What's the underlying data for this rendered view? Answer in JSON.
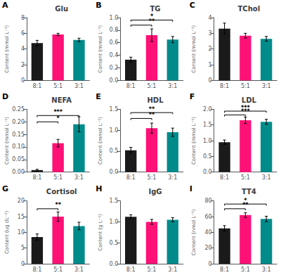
{
  "chart_data": [
    {
      "type": "bar",
      "label": "A",
      "title": "Glu",
      "ylabel": "Content (mmol L⁻¹)",
      "categories": [
        "8:1",
        "5:1",
        "3:1"
      ],
      "values": [
        4.75,
        5.85,
        5.15
      ],
      "errors": [
        0.35,
        0.15,
        0.22
      ],
      "colors": [
        "#1a1a1a",
        "#FF1177",
        "#008B8B"
      ],
      "ylim": [
        0,
        8
      ],
      "yticks": [
        0,
        2,
        4,
        6,
        8
      ],
      "annotations": [],
      "grid": false
    },
    {
      "type": "bar",
      "label": "B",
      "title": "TG",
      "ylabel": "Content (mmol L⁻¹)",
      "categories": [
        "8:1",
        "5:1",
        "3:1"
      ],
      "values": [
        0.33,
        0.72,
        0.65
      ],
      "errors": [
        0.04,
        0.1,
        0.05
      ],
      "colors": [
        "#1a1a1a",
        "#FF1177",
        "#008B8B"
      ],
      "ylim": [
        0,
        1.0
      ],
      "yticks": [
        {
          "value": 0.0,
          "label": "0.0"
        },
        {
          "value": 0.2,
          "label": "0.2"
        },
        {
          "value": 0.4,
          "label": "0.4"
        },
        {
          "value": 0.6,
          "label": "0.6"
        },
        {
          "value": 0.8,
          "label": "0.8"
        },
        {
          "value": 1.0,
          "label": "1.0"
        }
      ],
      "annotations": [
        {
          "from": "8:1",
          "to": "5:1",
          "y": 0.88,
          "text": "**"
        },
        {
          "from": "8:1",
          "to": "3:1",
          "y": 0.96,
          "text": "*"
        }
      ],
      "grid": false
    },
    {
      "type": "bar",
      "label": "C",
      "title": "TChol",
      "ylabel": "Content (mmol L⁻¹)",
      "categories": [
        "8:1",
        "5:1",
        "3:1"
      ],
      "values": [
        3.3,
        2.85,
        2.65
      ],
      "errors": [
        0.35,
        0.15,
        0.15
      ],
      "colors": [
        "#1a1a1a",
        "#FF1177",
        "#008B8B"
      ],
      "ylim": [
        0,
        4
      ],
      "yticks": [
        0,
        1,
        2,
        3,
        4
      ],
      "annotations": [],
      "grid": false
    },
    {
      "type": "bar",
      "label": "D",
      "title": "NEFA",
      "ylabel": "Content (mmol L⁻¹)",
      "categories": [
        "8:1",
        "5:1",
        "3:1"
      ],
      "values": [
        0.008,
        0.115,
        0.19
      ],
      "errors": [
        0.003,
        0.015,
        0.03
      ],
      "colors": [
        "#1a1a1a",
        "#FF1177",
        "#008B8B"
      ],
      "ylim": [
        0,
        0.25
      ],
      "yticks": [
        {
          "value": 0.0,
          "label": "0.00"
        },
        {
          "value": 0.05,
          "label": "0.05"
        },
        {
          "value": 0.1,
          "label": "0.10"
        },
        {
          "value": 0.15,
          "label": "0.15"
        },
        {
          "value": 0.2,
          "label": "0.20"
        },
        {
          "value": 0.25,
          "label": "0.25"
        }
      ],
      "annotations": [
        {
          "from": "8:1",
          "to": "5:1",
          "y": 0.2,
          "text": "*"
        },
        {
          "from": "8:1",
          "to": "3:1",
          "y": 0.225,
          "text": "***"
        }
      ],
      "grid": false
    },
    {
      "type": "bar",
      "label": "E",
      "title": "HDL",
      "ylabel": "Content (mmol L⁻¹)",
      "categories": [
        "8:1",
        "5:1",
        "3:1"
      ],
      "values": [
        0.52,
        1.05,
        0.95
      ],
      "errors": [
        0.07,
        0.12,
        0.1
      ],
      "colors": [
        "#1a1a1a",
        "#FF1177",
        "#008B8B"
      ],
      "ylim": [
        0,
        1.5
      ],
      "yticks": [
        {
          "value": 0.0,
          "label": "0.0"
        },
        {
          "value": 0.5,
          "label": "0.5"
        },
        {
          "value": 1.0,
          "label": "1.0"
        },
        {
          "value": 1.5,
          "label": "1.5"
        }
      ],
      "annotations": [
        {
          "from": "8:1",
          "to": "5:1",
          "y": 1.28,
          "text": "**"
        },
        {
          "from": "8:1",
          "to": "3:1",
          "y": 1.42,
          "text": "**"
        }
      ],
      "grid": false
    },
    {
      "type": "bar",
      "label": "F",
      "title": "LDL",
      "ylabel": "Content (mmol L⁻¹)",
      "categories": [
        "8:1",
        "5:1",
        "3:1"
      ],
      "values": [
        0.95,
        1.65,
        1.6
      ],
      "errors": [
        0.07,
        0.1,
        0.08
      ],
      "colors": [
        "#1a1a1a",
        "#FF1177",
        "#008B8B"
      ],
      "ylim": [
        0,
        2.0
      ],
      "yticks": [
        {
          "value": 0.0,
          "label": "0.0"
        },
        {
          "value": 0.5,
          "label": "0.5"
        },
        {
          "value": 1.0,
          "label": "1.0"
        },
        {
          "value": 1.5,
          "label": "1.5"
        },
        {
          "value": 2.0,
          "label": "2.0"
        }
      ],
      "annotations": [
        {
          "from": "8:1",
          "to": "5:1",
          "y": 1.82,
          "text": "***"
        },
        {
          "from": "8:1",
          "to": "3:1",
          "y": 1.94,
          "text": "***"
        }
      ],
      "grid": false
    },
    {
      "type": "bar",
      "label": "G",
      "title": "Cortisol",
      "ylabel": "Content (ug dL⁻¹)",
      "categories": [
        "8:1",
        "5:1",
        "3:1"
      ],
      "values": [
        8.5,
        15.0,
        12.0
      ],
      "errors": [
        1.0,
        1.5,
        1.2
      ],
      "colors": [
        "#1a1a1a",
        "#FF1177",
        "#008B8B"
      ],
      "ylim": [
        0,
        20
      ],
      "yticks": [
        0,
        5,
        10,
        15,
        20
      ],
      "annotations": [
        {
          "from": "8:1",
          "to": "5:1",
          "y": 17.5,
          "text": "**"
        }
      ],
      "grid": false
    },
    {
      "type": "bar",
      "label": "H",
      "title": "IgG",
      "ylabel": "Content (g L⁻¹)",
      "categories": [
        "8:1",
        "5:1",
        "3:1"
      ],
      "values": [
        1.12,
        1.0,
        1.05
      ],
      "errors": [
        0.05,
        0.06,
        0.05
      ],
      "colors": [
        "#1a1a1a",
        "#FF1177",
        "#008B8B"
      ],
      "ylim": [
        0,
        1.5
      ],
      "yticks": [
        {
          "value": 0.0,
          "label": "0.0"
        },
        {
          "value": 0.5,
          "label": "0.5"
        },
        {
          "value": 1.0,
          "label": "1.0"
        },
        {
          "value": 1.5,
          "label": "1.5"
        }
      ],
      "annotations": [],
      "grid": false
    },
    {
      "type": "bar",
      "label": "I",
      "title": "TT4",
      "ylabel": "Content (nmol L⁻¹)",
      "categories": [
        "8:1",
        "5:1",
        "3:1"
      ],
      "values": [
        45.0,
        62.0,
        57.0
      ],
      "errors": [
        3.5,
        3.0,
        3.5
      ],
      "colors": [
        "#1a1a1a",
        "#FF1177",
        "#008B8B"
      ],
      "ylim": [
        0,
        80
      ],
      "yticks": [
        0,
        20,
        40,
        60,
        80
      ],
      "annotations": [
        {
          "from": "8:1",
          "to": "5:1",
          "y": 70,
          "text": "**"
        },
        {
          "from": "8:1",
          "to": "3:1",
          "y": 76,
          "text": "*"
        }
      ],
      "grid": false
    }
  ]
}
